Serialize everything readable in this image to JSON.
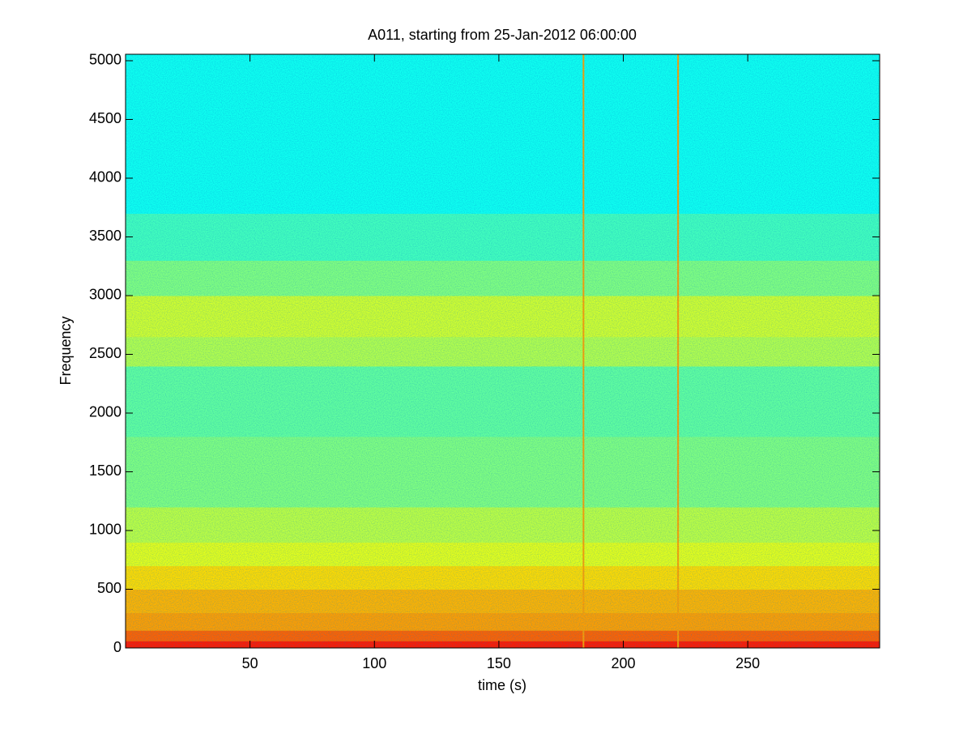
{
  "chart_data": {
    "type": "spectrogram",
    "title": "A011, starting from 25-Jan-2012 06:00:00",
    "xlabel": "time (s)",
    "ylabel": "Frequency",
    "xlim": [
      0,
      303
    ],
    "ylim": [
      0,
      5055
    ],
    "xticks": [
      50,
      100,
      150,
      200,
      250
    ],
    "yticks": [
      0,
      500,
      1000,
      1500,
      2000,
      2500,
      3000,
      3500,
      4000,
      4500,
      5000
    ],
    "colormap": "jet",
    "y_bins": [
      0,
      60,
      150,
      300,
      500,
      700,
      900,
      1200,
      1800,
      2400,
      2650,
      3000,
      3300,
      3700,
      5055
    ],
    "levels": [
      0.85,
      0.78,
      0.72,
      0.7,
      0.66,
      0.6,
      0.56,
      0.5,
      0.47,
      0.55,
      0.58,
      0.5,
      0.44,
      0.39
    ],
    "transients": {
      "x": [
        184,
        222
      ],
      "level": 0.72
    }
  }
}
